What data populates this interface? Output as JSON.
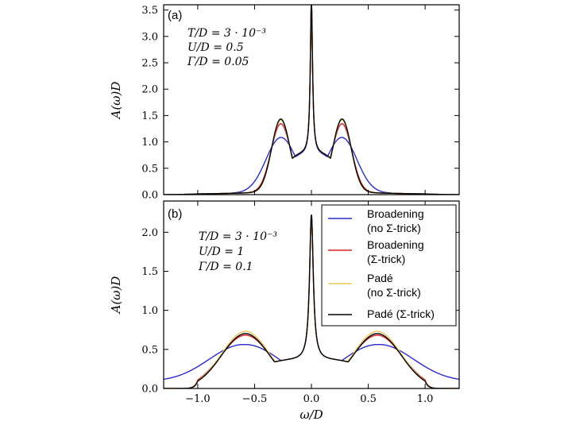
{
  "chart_data": [
    {
      "type": "line",
      "panel_label": "(a)",
      "ylabel": "A(ω)D",
      "xlabel": "",
      "xlim": [
        -1.3,
        1.3
      ],
      "ylim": [
        0,
        3.6
      ],
      "yticks": [
        0.0,
        0.5,
        1.0,
        1.5,
        2.0,
        2.5,
        3.0,
        3.5
      ],
      "ytick_labels": [
        "0.0",
        "0.5",
        "1.0",
        "1.5",
        "2.0",
        "2.5",
        "3.0",
        "3.5"
      ],
      "annotations": [
        "T/D = 3 · 10⁻³",
        "U/D = 0.5",
        "Γ/D = 0.05"
      ],
      "model": {
        "central_peak": 3.55,
        "central_width": 0.012,
        "hubbard_position": 0.27,
        "background": 0.1
      },
      "series": [
        {
          "name": "Broadening (no Σ-trick)",
          "color": "#2b2bc8",
          "hubbard_height": 1.12,
          "hubbard_width": 0.13,
          "dip": 0.76
        },
        {
          "name": "Broadening (Σ-trick)",
          "color": "#d62020",
          "hubbard_height": 1.38,
          "hubbard_width": 0.085,
          "dip": 0.78
        },
        {
          "name": "Padé (no Σ-trick)",
          "color": "#e8c85a",
          "hubbard_height": 1.45,
          "hubbard_width": 0.08,
          "dip": 0.78
        },
        {
          "name": "Padé (Σ-trick)",
          "color": "#000000",
          "hubbard_height": 1.47,
          "hubbard_width": 0.08,
          "dip": 0.78
        }
      ]
    },
    {
      "type": "line",
      "panel_label": "(b)",
      "ylabel": "A(ω)D",
      "xlabel": "ω/D",
      "xlim": [
        -1.3,
        1.3
      ],
      "ylim": [
        0,
        2.4
      ],
      "yticks": [
        0.0,
        0.5,
        1.0,
        1.5,
        2.0
      ],
      "ytick_labels": [
        "0.0",
        "0.5",
        "1.0",
        "1.5",
        "2.0"
      ],
      "xticks": [
        -1.0,
        -0.5,
        0.0,
        0.5,
        1.0
      ],
      "xtick_labels": [
        "−1.0",
        "−0.5",
        "0.0",
        "0.5",
        "1.0"
      ],
      "annotations": [
        "T/D = 3 · 10⁻³",
        "U/D = 1",
        "Γ/D = 0.1"
      ],
      "legend": {
        "placement": "top-right",
        "entries": [
          {
            "lines": [
              "Broadening",
              "(no Σ-trick)"
            ],
            "color": "#2b2bc8"
          },
          {
            "lines": [
              "Broadening",
              "(Σ-trick)"
            ],
            "color": "#d62020"
          },
          {
            "lines": [
              "Padé",
              "(no Σ-trick)"
            ],
            "color": "#e8c85a"
          },
          {
            "lines": [
              "Padé (Σ-trick)"
            ],
            "color": "#000000"
          }
        ]
      },
      "model": {
        "central_peak": 2.22,
        "central_width": 0.02,
        "hubbard_position": 0.58,
        "band_edge": 1.0,
        "background": 0.0
      },
      "series": [
        {
          "name": "Broadening (no Σ-trick)",
          "color": "#2b2bc8",
          "hubbard_height": 0.56,
          "hubbard_width": 0.32,
          "dip": 0.36,
          "value_at_xlim": 0.08,
          "shoulder": 0.0
        },
        {
          "name": "Broadening (Σ-trick)",
          "color": "#d62020",
          "hubbard_height": 0.68,
          "hubbard_width": 0.22,
          "dip": 0.36,
          "value_at_xlim": 0.0,
          "shoulder": 0.2
        },
        {
          "name": "Padé (no Σ-trick)",
          "color": "#e8c85a",
          "hubbard_height": 0.73,
          "hubbard_width": 0.21,
          "dip": 0.36,
          "value_at_xlim": 0.0,
          "shoulder": 0.24
        },
        {
          "name": "Padé (Σ-trick)",
          "color": "#000000",
          "hubbard_height": 0.7,
          "hubbard_width": 0.21,
          "dip": 0.36,
          "value_at_xlim": 0.0,
          "shoulder": 0.22
        }
      ]
    }
  ]
}
